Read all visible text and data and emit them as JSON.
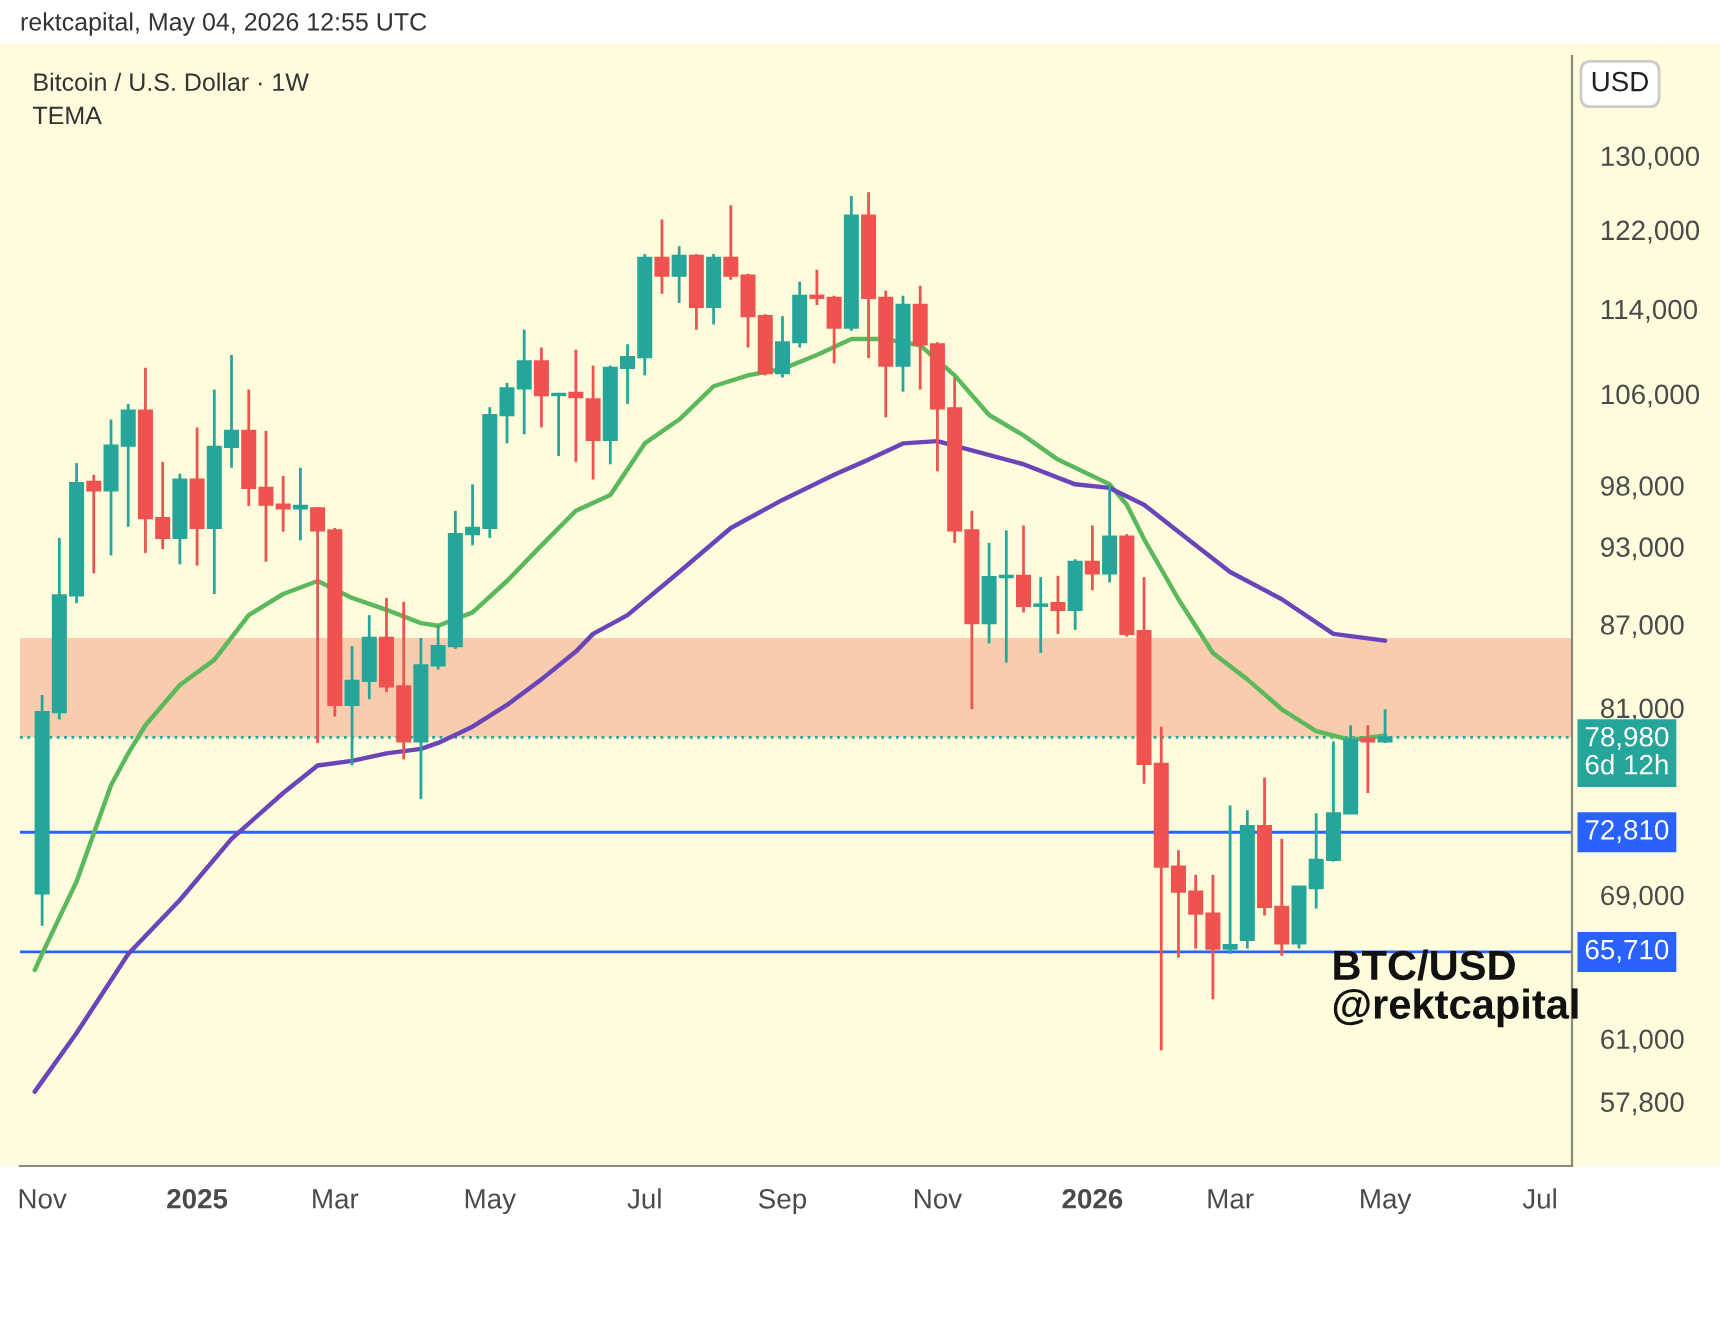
{
  "chart_data": {
    "type": "candlestick",
    "title": "Bitcoin / U.S. Dollar · 1W",
    "subtitle": "TEMA",
    "ylabel": "USD",
    "annotations": [
      "rektcapital, May 04, 2026 12:55 UTC",
      "BTC/USD\n@rektcapital"
    ],
    "log": true,
    "x": [
      "2024-11-04",
      "2024-11-11",
      "2024-11-18",
      "2024-11-25",
      "2024-12-02",
      "2024-12-09",
      "2024-12-16",
      "2024-12-23",
      "2024-12-30",
      "2025-01-06",
      "2025-01-13",
      "2025-01-20",
      "2025-01-27",
      "2025-02-03",
      "2025-02-10",
      "2025-02-17",
      "2025-02-24",
      "2025-03-03",
      "2025-03-10",
      "2025-03-17",
      "2025-03-24",
      "2025-03-31",
      "2025-04-07",
      "2025-04-14",
      "2025-04-21",
      "2025-04-28",
      "2025-05-05",
      "2025-05-12",
      "2025-05-19",
      "2025-05-26",
      "2025-06-02",
      "2025-06-09",
      "2025-06-16",
      "2025-06-23",
      "2025-06-30",
      "2025-07-07",
      "2025-07-14",
      "2025-07-21",
      "2025-07-28",
      "2025-08-04",
      "2025-08-11",
      "2025-08-18",
      "2025-08-25",
      "2025-09-01",
      "2025-09-08",
      "2025-09-15",
      "2025-09-22",
      "2025-09-29",
      "2025-10-06",
      "2025-10-13",
      "2025-10-20",
      "2025-10-27",
      "2025-11-03",
      "2025-11-10",
      "2025-11-17",
      "2025-11-24",
      "2025-12-01",
      "2025-12-08",
      "2025-12-15",
      "2025-12-22",
      "2025-12-29",
      "2026-01-05",
      "2026-01-12",
      "2026-01-19",
      "2026-01-26",
      "2026-02-02",
      "2026-02-09",
      "2026-02-16",
      "2026-02-23",
      "2026-03-02",
      "2026-03-09",
      "2026-03-16",
      "2026-03-23",
      "2026-03-30",
      "2026-04-06",
      "2026-04-13",
      "2026-04-20",
      "2026-04-27",
      "2026-05-04"
    ],
    "ohlc": [
      [
        69100,
        81900,
        67200,
        80700
      ],
      [
        80700,
        93700,
        80200,
        89200
      ],
      [
        89200,
        99900,
        88600,
        98200
      ],
      [
        98300,
        98900,
        90900,
        97600
      ],
      [
        97600,
        103700,
        92300,
        101400
      ],
      [
        101400,
        105100,
        94600,
        104500
      ],
      [
        104500,
        108400,
        92500,
        95300
      ],
      [
        95300,
        100000,
        92800,
        93700
      ],
      [
        93700,
        99000,
        91600,
        98500
      ],
      [
        98500,
        103000,
        91500,
        94500
      ],
      [
        94500,
        106400,
        89300,
        101300
      ],
      [
        101300,
        109600,
        99500,
        102700
      ],
      [
        102700,
        106400,
        96300,
        97800
      ],
      [
        97800,
        102700,
        91800,
        96400
      ],
      [
        96400,
        98800,
        94200,
        96100
      ],
      [
        96100,
        99500,
        93500,
        96300
      ],
      [
        96100,
        96200,
        78600,
        94300
      ],
      [
        94300,
        94500,
        80400,
        81200
      ],
      [
        81200,
        85400,
        77100,
        82900
      ],
      [
        82900,
        87700,
        81600,
        86000
      ],
      [
        86000,
        89000,
        82100,
        82500
      ],
      [
        82500,
        88700,
        77500,
        78700
      ],
      [
        78700,
        86000,
        74900,
        84000
      ],
      [
        84000,
        86900,
        83700,
        85400
      ],
      [
        85400,
        95900,
        85200,
        94000
      ],
      [
        94000,
        98100,
        93100,
        94500
      ],
      [
        94500,
        104800,
        93700,
        104100
      ],
      [
        104100,
        107000,
        101600,
        106500
      ],
      [
        106500,
        112000,
        102400,
        109000
      ],
      [
        109000,
        110300,
        103000,
        105900
      ],
      [
        105900,
        106100,
        100500,
        106000
      ],
      [
        106100,
        110100,
        100000,
        105700
      ],
      [
        105500,
        108600,
        98500,
        101900
      ],
      [
        101900,
        108600,
        99800,
        108400
      ],
      [
        108400,
        110600,
        105100,
        109400
      ],
      [
        109400,
        119500,
        107700,
        119100
      ],
      [
        119100,
        123100,
        115500,
        117300
      ],
      [
        117300,
        120300,
        114600,
        119300
      ],
      [
        119300,
        119500,
        112000,
        114200
      ],
      [
        114200,
        119500,
        112500,
        119100
      ],
      [
        119100,
        124600,
        116900,
        117300
      ],
      [
        117300,
        117500,
        110300,
        113300
      ],
      [
        113300,
        113500,
        107700,
        107900
      ],
      [
        107900,
        113300,
        107500,
        110800
      ],
      [
        110800,
        116700,
        110300,
        115300
      ],
      [
        115300,
        117900,
        114400,
        115100
      ],
      [
        115100,
        115300,
        108800,
        112200
      ],
      [
        112200,
        125600,
        111900,
        123500
      ],
      [
        123500,
        126000,
        109300,
        115100
      ],
      [
        115100,
        115800,
        103900,
        108600
      ],
      [
        108600,
        115300,
        106200,
        114400
      ],
      [
        114400,
        116300,
        106400,
        110600
      ],
      [
        110600,
        110800,
        99200,
        104700
      ],
      [
        104700,
        107500,
        93300,
        94300
      ],
      [
        94300,
        95900,
        80900,
        87100
      ],
      [
        87100,
        93300,
        85600,
        90600
      ],
      [
        90600,
        94300,
        84200,
        90700
      ],
      [
        90700,
        94700,
        87900,
        88400
      ],
      [
        88400,
        90600,
        84900,
        88500
      ],
      [
        88600,
        90700,
        86300,
        88100
      ],
      [
        88100,
        92000,
        86600,
        91800
      ],
      [
        91800,
        94700,
        89600,
        90900
      ],
      [
        90900,
        98100,
        90200,
        93800
      ],
      [
        93800,
        94000,
        86100,
        86300
      ],
      [
        86500,
        90600,
        75900,
        77200
      ],
      [
        77200,
        79700,
        60400,
        70700
      ],
      [
        70700,
        71700,
        65400,
        69200
      ],
      [
        69200,
        70200,
        65900,
        67900
      ],
      [
        67900,
        70200,
        63100,
        65900
      ],
      [
        65900,
        74500,
        65600,
        66100
      ],
      [
        66400,
        74200,
        65900,
        73200
      ],
      [
        73200,
        76300,
        67800,
        68300
      ],
      [
        68300,
        72400,
        65500,
        66200
      ],
      [
        66200,
        69500,
        65900,
        69500
      ],
      [
        69400,
        74000,
        68200,
        71100
      ],
      [
        71100,
        78700,
        71000,
        74000
      ],
      [
        74000,
        79800,
        74000,
        78800
      ],
      [
        78900,
        79800,
        75300,
        78700
      ],
      [
        78700,
        80900,
        78600,
        78980
      ]
    ],
    "colors": [
      "#26a69a",
      "#26a69a",
      "#26a69a",
      "#ef5350",
      "#26a69a",
      "#26a69a",
      "#ef5350",
      "#ef5350",
      "#26a69a",
      "#ef5350",
      "#26a69a",
      "#26a69a",
      "#ef5350",
      "#ef5350",
      "#ef5350",
      "#26a69a",
      "#ef5350",
      "#ef5350",
      "#26a69a",
      "#26a69a",
      "#ef5350",
      "#ef5350",
      "#26a69a",
      "#26a69a",
      "#26a69a",
      "#26a69a",
      "#26a69a",
      "#26a69a",
      "#26a69a",
      "#ef5350",
      "#26a69a",
      "#ef5350",
      "#ef5350",
      "#26a69a",
      "#26a69a",
      "#26a69a",
      "#ef5350",
      "#26a69a",
      "#ef5350",
      "#26a69a",
      "#ef5350",
      "#ef5350",
      "#ef5350",
      "#26a69a",
      "#26a69a",
      "#ef5350",
      "#ef5350",
      "#26a69a",
      "#ef5350",
      "#ef5350",
      "#26a69a",
      "#ef5350",
      "#ef5350",
      "#ef5350",
      "#ef5350",
      "#26a69a",
      "#26a69a",
      "#ef5350",
      "#26a69a",
      "#ef5350",
      "#26a69a",
      "#ef5350",
      "#26a69a",
      "#ef5350",
      "#ef5350",
      "#ef5350",
      "#ef5350",
      "#ef5350",
      "#ef5350",
      "#26a69a",
      "#26a69a",
      "#ef5350",
      "#ef5350",
      "#26a69a",
      "#26a69a",
      "#26a69a",
      "#26a69a",
      "#ef5350",
      "#26a69a"
    ],
    "series": [
      {
        "type": "line",
        "color": "#5cb85c",
        "x": [
          "2024-11-01",
          "2024-11-04",
          "2024-11-18",
          "2024-12-02",
          "2024-12-09",
          "2024-12-16",
          "2024-12-30",
          "2025-01-13",
          "2025-01-27",
          "2025-02-10",
          "2025-02-24",
          "2025-03-10",
          "2025-03-24",
          "2025-04-07",
          "2025-04-14",
          "2025-04-28",
          "2025-05-12",
          "2025-05-26",
          "2025-06-09",
          "2025-06-23",
          "2025-07-07",
          "2025-07-21",
          "2025-08-04",
          "2025-08-18",
          "2025-09-01",
          "2025-09-15",
          "2025-09-29",
          "2025-10-13",
          "2025-10-27",
          "2025-11-10",
          "2025-11-24",
          "2025-12-08",
          "2025-12-22",
          "2026-01-05",
          "2026-01-12",
          "2026-01-19",
          "2026-01-26",
          "2026-02-09",
          "2026-02-23",
          "2026-03-09",
          "2026-03-23",
          "2026-04-06",
          "2026-04-20",
          "2026-05-04"
        ],
        "values": [
          64700,
          65600,
          69800,
          75800,
          77900,
          79800,
          82600,
          84400,
          87700,
          89300,
          90300,
          89000,
          88100,
          87100,
          86900,
          87900,
          90300,
          93100,
          95900,
          97200,
          101600,
          103700,
          106700,
          107700,
          108300,
          109600,
          111100,
          111100,
          110500,
          107700,
          104100,
          102300,
          100200,
          98800,
          98100,
          96400,
          93600,
          88900,
          84900,
          83000,
          80900,
          79400,
          78800,
          79100
        ]
      },
      {
        "type": "line",
        "color": "#6a45b8",
        "x": [
          "2024-11-01",
          "2024-11-18",
          "2024-12-09",
          "2024-12-30",
          "2025-01-20",
          "2025-02-10",
          "2025-02-24",
          "2025-03-10",
          "2025-03-24",
          "2025-04-07",
          "2025-04-14",
          "2025-04-28",
          "2025-05-12",
          "2025-05-26",
          "2025-06-09",
          "2025-06-16",
          "2025-06-30",
          "2025-07-21",
          "2025-08-11",
          "2025-09-01",
          "2025-09-22",
          "2025-10-06",
          "2025-10-20",
          "2025-11-03",
          "2025-11-17",
          "2025-12-08",
          "2025-12-29",
          "2026-01-12",
          "2026-01-26",
          "2026-02-16",
          "2026-03-02",
          "2026-03-23",
          "2026-04-13",
          "2026-05-04"
        ],
        "values": [
          58300,
          61300,
          65600,
          68700,
          72400,
          75300,
          77100,
          77400,
          77900,
          78200,
          78600,
          79700,
          81200,
          83000,
          85000,
          86300,
          87700,
          91000,
          94500,
          96800,
          98900,
          100200,
          101600,
          101800,
          101000,
          99800,
          98100,
          97800,
          96400,
          93100,
          91000,
          88900,
          86300,
          85800
        ]
      }
    ],
    "ref_lines": [
      {
        "axis": "y",
        "value": 72810,
        "label": "72,810",
        "color": "#2962ff",
        "line_style": "solid"
      },
      {
        "axis": "y",
        "value": 65710,
        "label": "65,710",
        "color": "#2962ff",
        "line_style": "solid"
      },
      {
        "axis": "y",
        "value": 78980,
        "label": "78,980\n6d 12h",
        "color": "#26a69a",
        "line_style": "dotted"
      }
    ],
    "bands": [
      {
        "axis": "y",
        "from": 78980,
        "to": 86000,
        "color": "#f9c6a8"
      }
    ],
    "xlim": [
      "2024-10-26",
      "2026-07-19"
    ],
    "xticks": [
      {
        "value": "2024-11-04",
        "label": "Nov"
      },
      {
        "value": "2025-01-06",
        "label": "2025"
      },
      {
        "value": "2025-03-03",
        "label": "Mar"
      },
      {
        "value": "2025-05-05",
        "label": "May"
      },
      {
        "value": "2025-07-07",
        "label": "Jul"
      },
      {
        "value": "2025-09-01",
        "label": "Sep"
      },
      {
        "value": "2025-11-03",
        "label": "Nov"
      },
      {
        "value": "2026-01-05",
        "label": "2026"
      },
      {
        "value": "2026-03-02",
        "label": "Mar"
      },
      {
        "value": "2026-05-04",
        "label": "May"
      },
      {
        "value": "2026-07-06",
        "label": "Jul"
      }
    ],
    "ylim": [
      54700,
      141600
    ],
    "yticks": [
      {
        "value": 57800,
        "label": "57,800"
      },
      {
        "value": 61000,
        "label": "61,000"
      },
      {
        "value": 69000,
        "label": "69,000"
      },
      {
        "value": 81000,
        "label": "81,000"
      },
      {
        "value": 87000,
        "label": "87,000"
      },
      {
        "value": 93000,
        "label": "93,000"
      },
      {
        "value": 98000,
        "label": "98,000"
      },
      {
        "value": 106000,
        "label": "106,000"
      },
      {
        "value": 114000,
        "label": "114,000"
      },
      {
        "value": 122000,
        "label": "122,000"
      },
      {
        "value": 130000,
        "label": "130,000"
      }
    ]
  }
}
